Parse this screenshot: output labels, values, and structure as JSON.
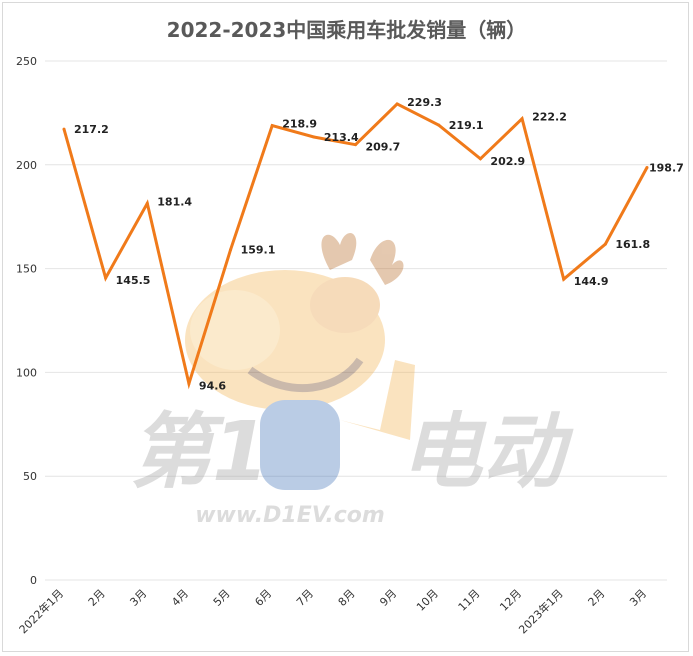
{
  "chart_data": {
    "type": "line",
    "title": "2022-2023中国乘用车批发销量（辆）",
    "xlabel": "",
    "ylabel": "",
    "categories": [
      "2022年1月",
      "2月",
      "3月",
      "4月",
      "5月",
      "6月",
      "7月",
      "8月",
      "9月",
      "10月",
      "11月",
      "12月",
      "2023年1月",
      "2月",
      "3月"
    ],
    "series": [
      {
        "values": [
          217.2,
          145.5,
          181.4,
          94.6,
          159.1,
          218.9,
          213.4,
          209.7,
          229.3,
          219.1,
          202.9,
          222.2,
          144.9,
          161.8,
          198.7
        ]
      }
    ],
    "ylim": [
      0,
      250
    ],
    "yticks": [
      0,
      50,
      100,
      150,
      200,
      250
    ],
    "grid": true,
    "legend": "none",
    "line_color": "#f07a1a"
  },
  "watermark": {
    "brand": "第1电动",
    "url": "www.D1EV.com"
  }
}
